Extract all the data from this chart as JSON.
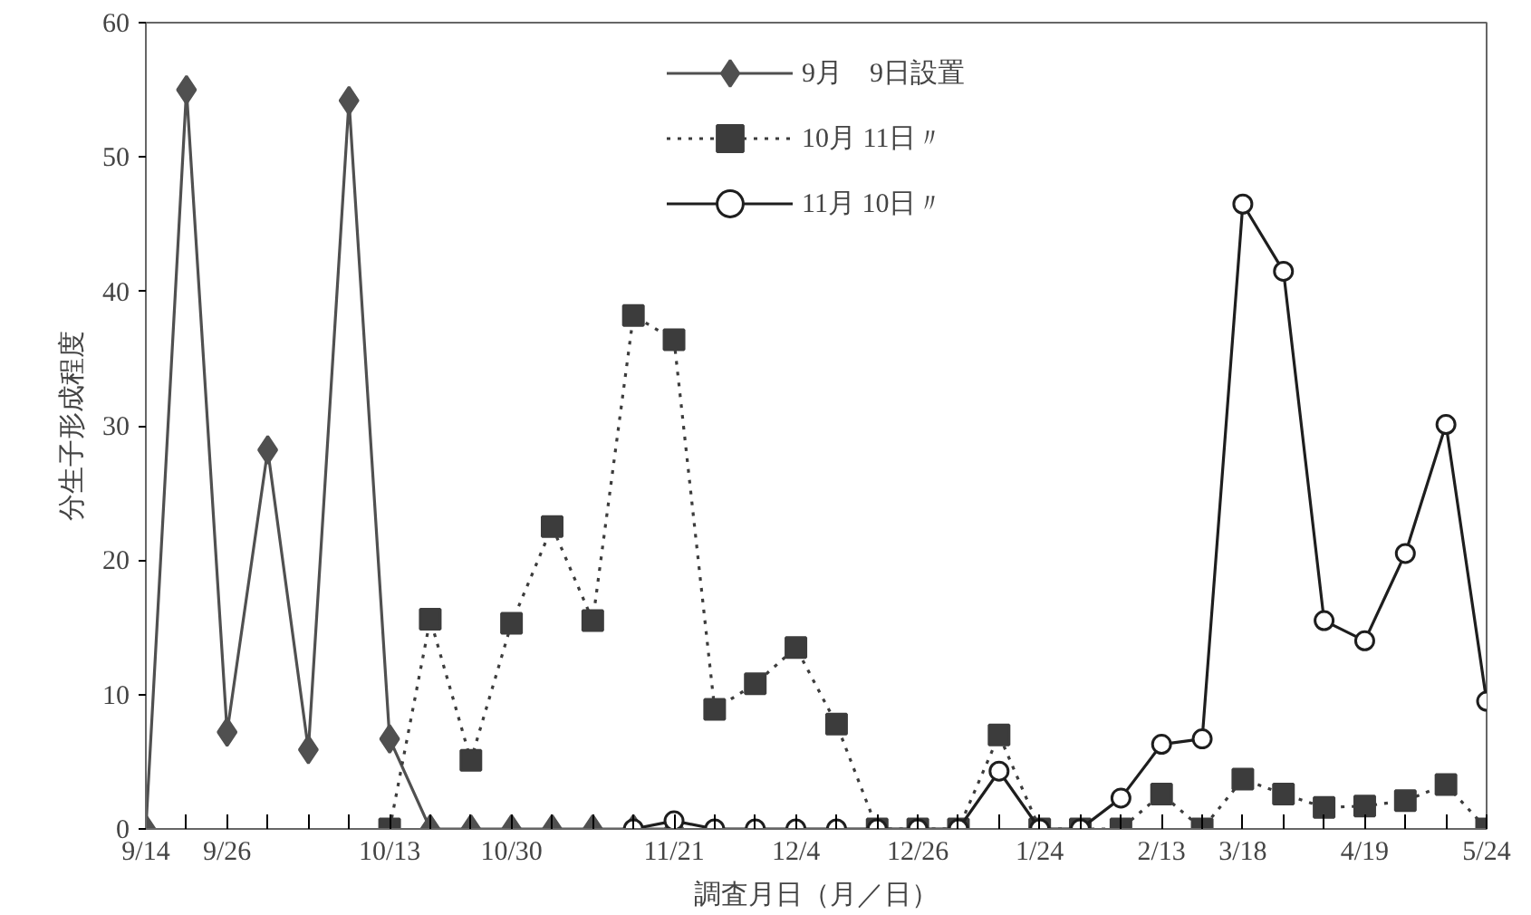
{
  "chart_data": {
    "type": "line",
    "xlabel": "調査月日（月／日）",
    "ylabel": "分生子形成程度",
    "categories": [
      "9/14",
      null,
      "9/26",
      null,
      null,
      null,
      "10/13",
      null,
      null,
      "10/30",
      null,
      null,
      null,
      "11/21",
      null,
      null,
      "12/4",
      null,
      null,
      "12/26",
      null,
      null,
      "1/24",
      null,
      null,
      "2/13",
      null,
      "3/18",
      null,
      null,
      "4/19",
      null,
      null,
      "5/24"
    ],
    "series": [
      {
        "name": "9月　9日設置",
        "color": "#505050",
        "marker": "diamond",
        "line_style": "solid",
        "values": [
          0,
          55,
          7.2,
          28.2,
          5.9,
          54.2,
          6.7,
          0,
          0,
          0,
          0,
          0,
          0,
          0,
          null,
          null,
          null,
          null,
          null,
          null,
          null,
          null,
          null,
          null,
          null,
          null,
          null,
          null,
          null,
          null,
          null,
          null,
          null,
          null
        ]
      },
      {
        "name": "10月 11日〃",
        "color": "#3c3c3c",
        "marker": "square",
        "line_style": "dotted",
        "values": [
          null,
          null,
          null,
          null,
          null,
          null,
          0,
          15.6,
          5.1,
          15.3,
          22.5,
          15.5,
          38.2,
          36.4,
          8.9,
          10.8,
          13.5,
          7.8,
          0,
          0,
          0,
          7.0,
          0,
          0,
          0,
          2.6,
          0,
          3.7,
          2.6,
          1.6,
          1.7,
          2.1,
          3.3,
          0
        ]
      },
      {
        "name": "11月 10日〃",
        "color": "#1e1e1e",
        "marker": "circle",
        "line_style": "solid",
        "values": [
          null,
          null,
          null,
          null,
          null,
          null,
          null,
          null,
          null,
          null,
          null,
          null,
          0,
          0.6,
          0,
          0,
          0,
          0,
          0,
          0,
          0,
          4.3,
          0,
          0,
          2.3,
          6.3,
          6.7,
          46.5,
          41.5,
          15.5,
          14.0,
          20.5,
          30.1,
          9.5
        ]
      }
    ],
    "ylim": [
      0,
      60
    ],
    "yticks": [
      0,
      10,
      20,
      30,
      40,
      50,
      60
    ],
    "grid": false,
    "legend": "top"
  }
}
